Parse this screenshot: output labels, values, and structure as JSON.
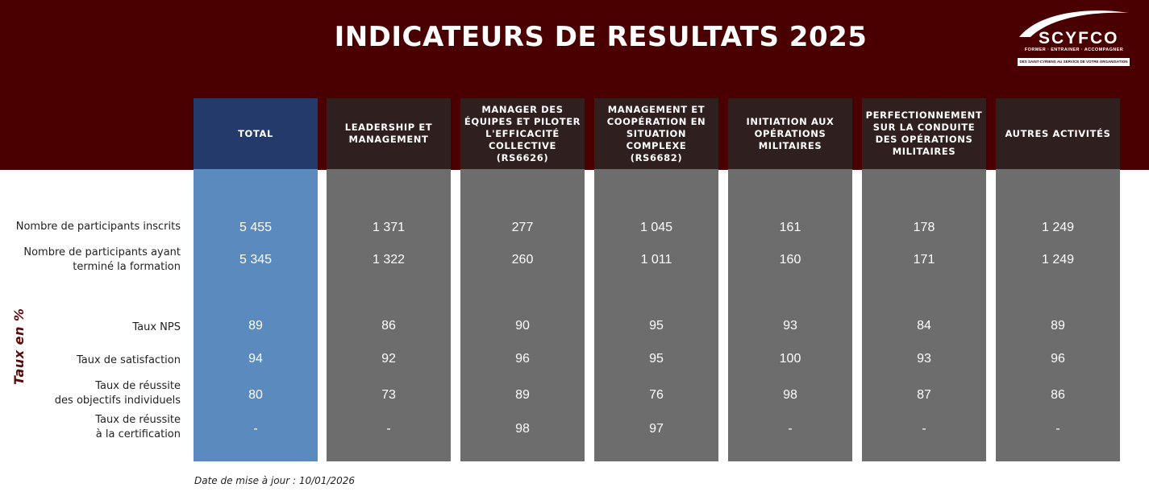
{
  "title": "INDICATEURS DE RESULTATS 2025",
  "logo": {
    "name": "SCYFCO",
    "tagline": "FORMER · ENTRAINER · ACCOMPAGNER",
    "subtagline": "DES SAINT-CYRIENS AU SERVICE DE VOTRE ORGANISATION"
  },
  "side_label": "Taux en %",
  "row_labels": [
    "Nombre de participants inscrits",
    "Nombre de participants ayant\nterminé la formation",
    "Taux NPS",
    "Taux de satisfaction",
    "Taux de réussite\ndes objectifs individuels",
    "Taux de réussite\nà la certification"
  ],
  "columns": [
    {
      "header": "TOTAL",
      "values": [
        "5 455",
        "5 345",
        "89",
        "94",
        "80",
        "-"
      ]
    },
    {
      "header": "LEADERSHIP ET\nMANAGEMENT",
      "values": [
        "1 371",
        "1 322",
        "86",
        "92",
        "73",
        "-"
      ]
    },
    {
      "header": "MANAGER DES\nÉQUIPES ET PILOTER\nL'EFFICACITÉ\nCOLLECTIVE\n(RS6626)",
      "values": [
        "277",
        "260",
        "90",
        "96",
        "89",
        "98"
      ]
    },
    {
      "header": "MANAGEMENT ET\nCOOPÉRATION EN\nSITUATION\nCOMPLEXE\n(RS6682)",
      "values": [
        "1 045",
        "1 011",
        "95",
        "95",
        "76",
        "97"
      ]
    },
    {
      "header": "INITIATION AUX\nOPÉRATIONS\nMILITAIRES",
      "values": [
        "161",
        "160",
        "93",
        "100",
        "98",
        "-"
      ]
    },
    {
      "header": "PERFECTIONNEMENT\nSUR LA CONDUITE\nDES OPÉRATIONS\nMILITAIRES",
      "values": [
        "178",
        "171",
        "84",
        "93",
        "87",
        "-"
      ]
    },
    {
      "header": "AUTRES ACTIVITÉS",
      "values": [
        "1 249",
        "1 249",
        "89",
        "96",
        "86",
        "-"
      ]
    }
  ],
  "footnote": "Date de mise à jour : 10/01/2026",
  "colors": {
    "banner": "#4a0000",
    "total_header": "#233a6b",
    "total_body": "#5b8abf",
    "column_header": "#2f1f1f",
    "column_body": "#6d6d6d"
  }
}
